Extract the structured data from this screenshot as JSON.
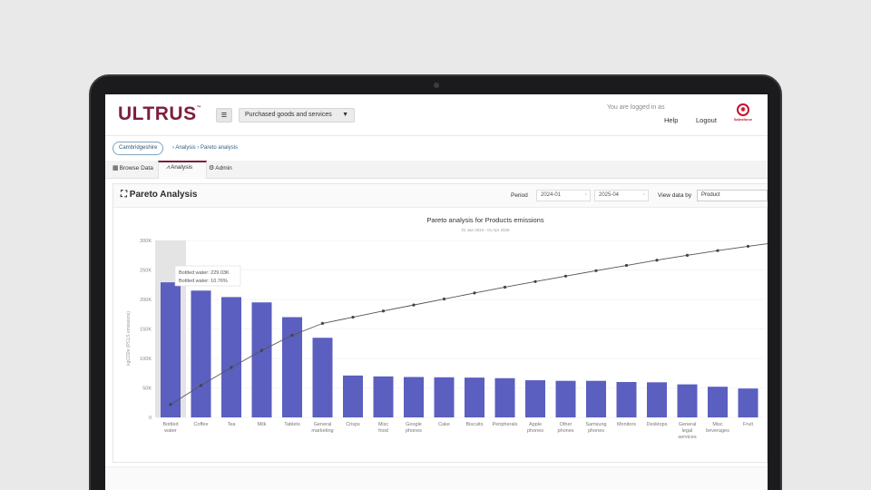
{
  "app": {
    "logo": "ULTRUS",
    "logo_mark": "™",
    "category_dropdown": "Purchased goods and services",
    "logged_in_text": "You are logged in as",
    "help": "Help",
    "logout": "Logout",
    "partner_logo": "Salesforce"
  },
  "breadcrumb": {
    "org": "Cambridgeshire",
    "path": "› Analysis › Pareto analysis"
  },
  "tabs": [
    {
      "label": "Browse Data",
      "icon": "table-icon"
    },
    {
      "label": "Analysis",
      "icon": "analysis-icon"
    },
    {
      "label": "Admin",
      "icon": "gear-icon"
    }
  ],
  "panel": {
    "title": "Pareto Analysis",
    "period_label": "Period",
    "period_from": "2024-01",
    "period_to": "2025-04",
    "view_label": "View data by",
    "view_value": "Product"
  },
  "chart_data": {
    "type": "bar",
    "title": "Pareto analysis for Products emissions",
    "subtitle": "01 Jan 2024 - 01 Apr 2025",
    "ylabel": "kgCO2e (PCLS emissions)",
    "ylim": [
      0,
      300000
    ],
    "yticks": [
      "0",
      "50K",
      "100K",
      "150K",
      "200K",
      "250K",
      "300K"
    ],
    "categories": [
      "Bottled water",
      "Coffee",
      "Tea",
      "Milk",
      "Tablets",
      "General marketing",
      "Crisps",
      "Misc food",
      "Google phones",
      "Cake",
      "Biscuits",
      "Peripherals",
      "Apple phones",
      "Other phones",
      "Samsung phones",
      "Monitors",
      "Desktops",
      "General legal services",
      "Misc beverages",
      "Fruit"
    ],
    "values": [
      229030,
      215000,
      204000,
      195000,
      170000,
      135000,
      71000,
      69500,
      68500,
      68000,
      67500,
      66500,
      63000,
      62000,
      62000,
      60000,
      59500,
      56000,
      52000,
      49000
    ],
    "cumulative_percent": [
      10.76,
      20.9,
      30.5,
      39.6,
      47.6,
      54.0,
      57.3,
      60.6,
      63.8,
      67.0,
      70.2,
      73.3,
      76.3,
      79.2,
      82.1,
      84.9,
      87.7,
      90.3,
      92.8,
      95.1
    ],
    "bar_color": "#5b5fc0",
    "line_color": "#555555",
    "tooltip": {
      "line1": "Bottled water: 229.03K",
      "line2": "Bottled water: 10.76%"
    },
    "grid": true
  }
}
